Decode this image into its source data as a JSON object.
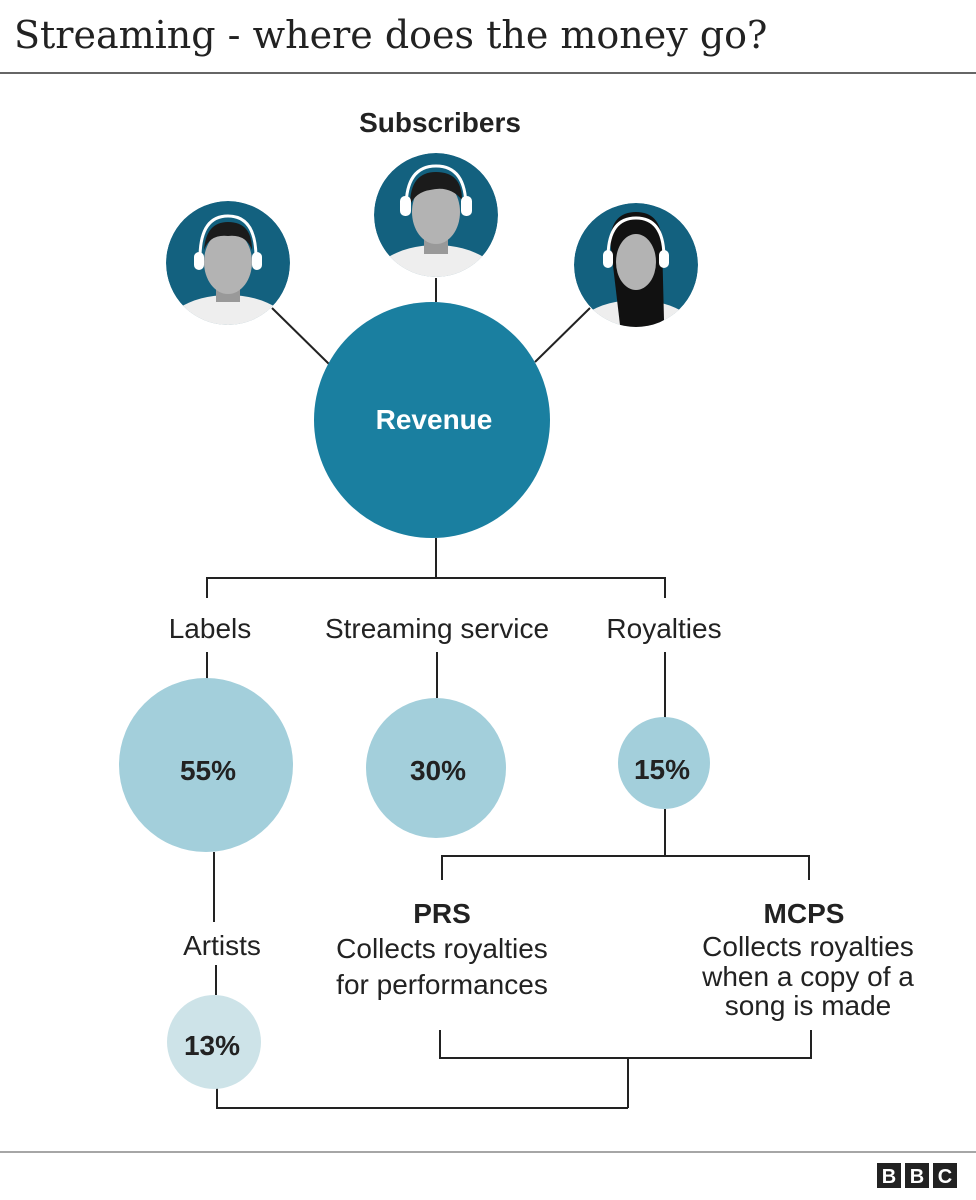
{
  "title": "Streaming - where does the money go?",
  "subscribers_label": "Subscribers",
  "revenue_label": "Revenue",
  "branches": [
    {
      "label": "Labels",
      "percent": "55%"
    },
    {
      "label": "Streaming service",
      "percent": "30%"
    },
    {
      "label": "Royalties",
      "percent": "15%"
    }
  ],
  "artists": {
    "label": "Artists",
    "percent": "13%"
  },
  "prs": {
    "name": "PRS",
    "lines": [
      "Collects royalties",
      "for performances"
    ]
  },
  "mcps": {
    "name": "MCPS",
    "lines": [
      "Collects royalties",
      "when a copy of a",
      "song is made"
    ]
  },
  "logo": "BBC",
  "colors": {
    "avatar_bg": "#13617f",
    "revenue": "#1a7fa0",
    "share": "#a3cfdb",
    "artists": "#cde3e8"
  }
}
